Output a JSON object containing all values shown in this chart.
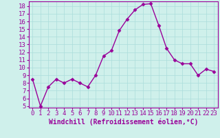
{
  "x": [
    0,
    1,
    2,
    3,
    4,
    5,
    6,
    7,
    8,
    9,
    10,
    11,
    12,
    13,
    14,
    15,
    16,
    17,
    18,
    19,
    20,
    21,
    22,
    23
  ],
  "y": [
    8.5,
    5.0,
    7.5,
    8.5,
    8.0,
    8.5,
    8.0,
    7.5,
    9.0,
    11.5,
    12.2,
    14.8,
    16.3,
    17.5,
    18.2,
    18.3,
    15.5,
    12.5,
    11.0,
    10.5,
    10.5,
    9.0,
    9.8,
    9.5
  ],
  "line_color": "#990099",
  "marker": "D",
  "marker_size": 2.5,
  "bg_color": "#cff0eb",
  "grid_color": "#aaddda",
  "xlabel": "Windchill (Refroidissement éolien,°C)",
  "xlabel_color": "#990099",
  "tick_color": "#990099",
  "ylim": [
    4.8,
    18.6
  ],
  "xlim": [
    -0.5,
    23.5
  ],
  "yticks": [
    5,
    6,
    7,
    8,
    9,
    10,
    11,
    12,
    13,
    14,
    15,
    16,
    17,
    18
  ],
  "xticks": [
    0,
    1,
    2,
    3,
    4,
    5,
    6,
    7,
    8,
    9,
    10,
    11,
    12,
    13,
    14,
    15,
    16,
    17,
    18,
    19,
    20,
    21,
    22,
    23
  ],
  "spine_color": "#990099",
  "line_width": 1.0,
  "font_size": 6.5,
  "xlabel_fontsize": 7.0
}
